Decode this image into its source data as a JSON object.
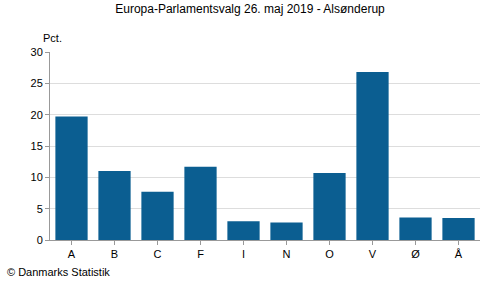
{
  "chart_data": {
    "type": "bar",
    "title": "Europa-Parlamentsvalg 26. maj 2019 - Alsønderup",
    "ylabel": "Pct.",
    "categories": [
      "A",
      "B",
      "C",
      "F",
      "I",
      "N",
      "O",
      "V",
      "Ø",
      "Å"
    ],
    "values": [
      19.7,
      11.0,
      7.7,
      11.7,
      3.0,
      2.8,
      10.7,
      26.8,
      3.6,
      3.5
    ],
    "color": "#0b5e91",
    "ylim": [
      0,
      30
    ],
    "yticks": [
      0,
      5,
      10,
      15,
      20,
      25,
      30
    ],
    "grid": true,
    "annotations": [
      "© Danmarks Statistik"
    ]
  }
}
